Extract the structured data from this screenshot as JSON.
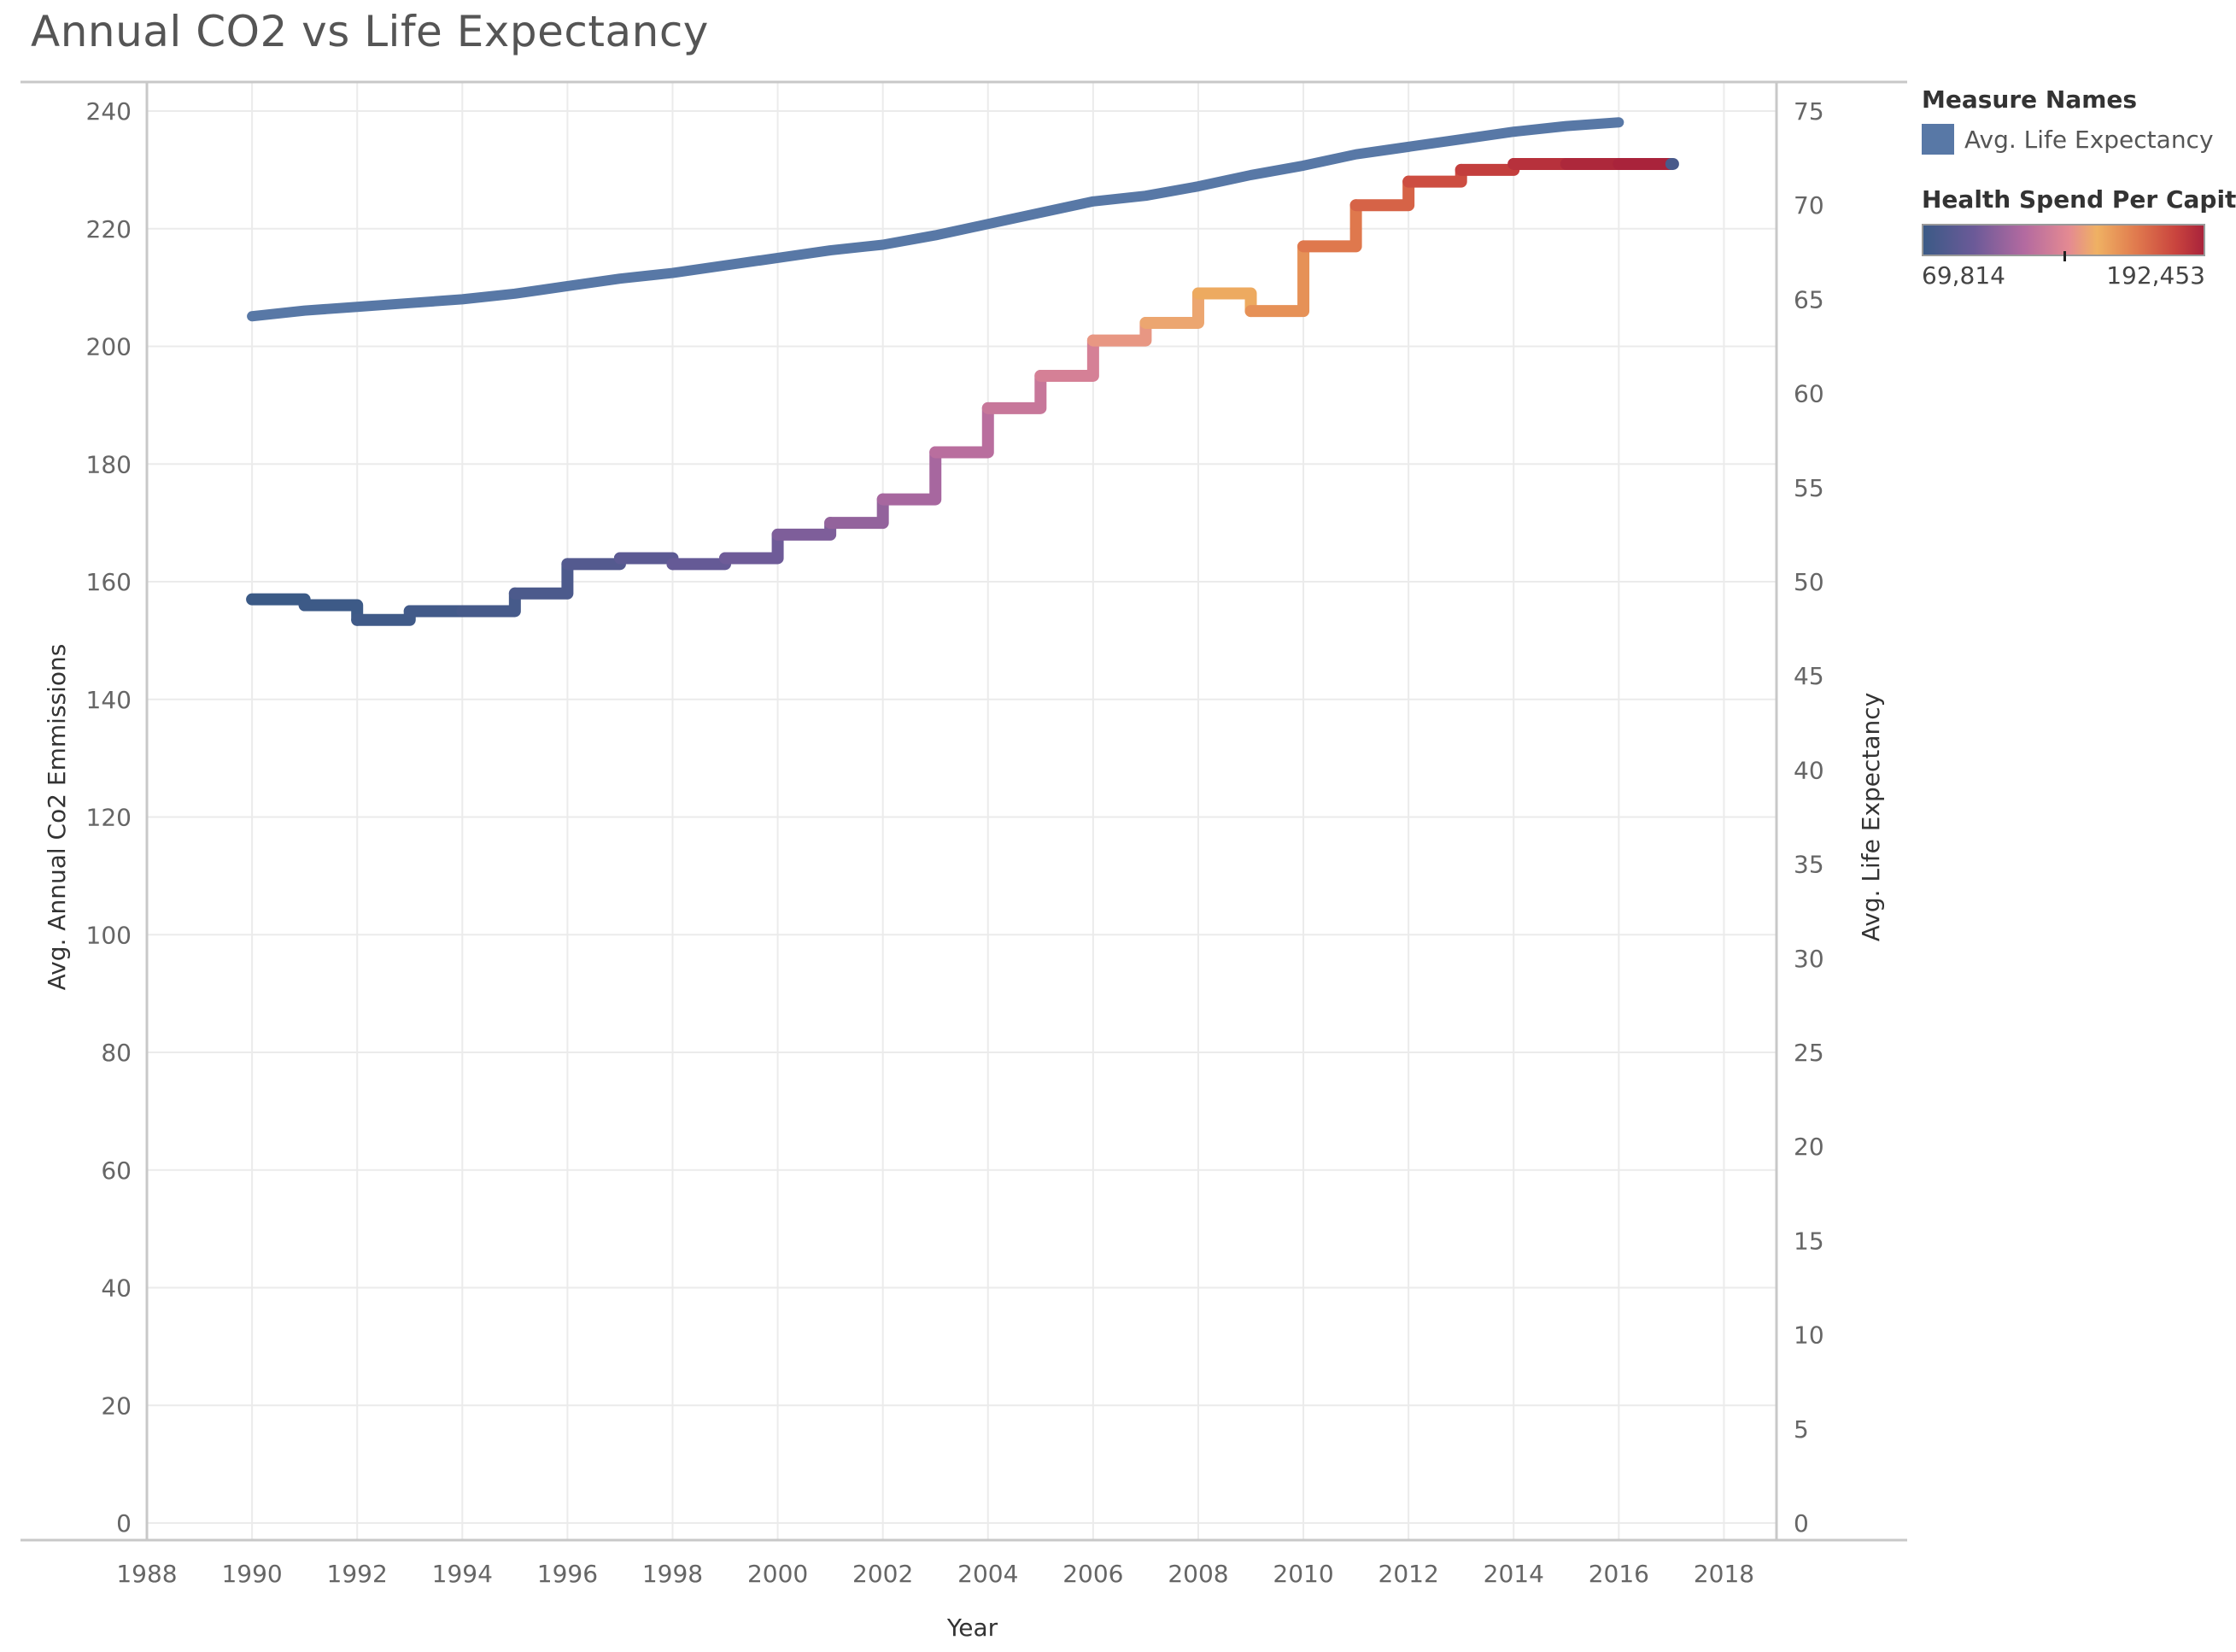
{
  "title": "Annual CO2 vs Life Expectancy",
  "chart_data": {
    "type": "line",
    "title": "Annual CO2 vs Life Expectancy",
    "xlabel": "Year",
    "ylabel_left": "Avg. Annual Co2 Emmissions",
    "ylabel_right": "Avg. Life Expectancy",
    "xlim": [
      1988,
      2019
    ],
    "x_ticks": [
      1988,
      1990,
      1992,
      1994,
      1996,
      1998,
      2000,
      2002,
      2004,
      2006,
      2008,
      2010,
      2012,
      2014,
      2016,
      2018
    ],
    "ylim_left": [
      0,
      240
    ],
    "y_ticks_left": [
      0,
      20,
      40,
      60,
      80,
      100,
      120,
      140,
      160,
      180,
      200,
      220,
      240
    ],
    "ylim_right": [
      0,
      75
    ],
    "y_ticks_right": [
      0,
      5,
      10,
      15,
      20,
      25,
      30,
      35,
      40,
      45,
      50,
      55,
      60,
      65,
      70,
      75
    ],
    "grid": true,
    "series": [
      {
        "name": "Avg. Annual Co2 Emmissions",
        "axis": "left",
        "line_style": "step",
        "x": [
          1990,
          1991,
          1992,
          1993,
          1994,
          1995,
          1996,
          1997,
          1998,
          1999,
          2000,
          2001,
          2002,
          2003,
          2004,
          2005,
          2006,
          2007,
          2008,
          2009,
          2010,
          2011,
          2012,
          2013,
          2014,
          2015,
          2016,
          2017
        ],
        "values": [
          157,
          156,
          153.5,
          155,
          155,
          158,
          163,
          164,
          163,
          164,
          168,
          170,
          174,
          182,
          189.5,
          195,
          201,
          204,
          209,
          206,
          217,
          224,
          228,
          230,
          231,
          231,
          231,
          231
        ],
        "health_spend_per_capita": [
          69814,
          70500,
          71500,
          72500,
          74000,
          76000,
          79000,
          82000,
          85000,
          88000,
          92000,
          97000,
          102000,
          107000,
          112000,
          117000,
          128000,
          135000,
          142000,
          150000,
          158000,
          165000,
          172000,
          178000,
          185000,
          190000,
          192453,
          75000
        ]
      },
      {
        "name": "Avg. Life Expectancy",
        "axis": "right",
        "line_style": "line",
        "x": [
          1990,
          1991,
          1992,
          1993,
          1994,
          1995,
          1996,
          1997,
          1998,
          1999,
          2000,
          2001,
          2002,
          2003,
          2004,
          2005,
          2006,
          2007,
          2008,
          2009,
          2010,
          2011,
          2012,
          2013,
          2014,
          2015,
          2016
        ],
        "values": [
          64.1,
          64.4,
          64.6,
          64.8,
          65.0,
          65.3,
          65.7,
          66.1,
          66.4,
          66.8,
          67.2,
          67.6,
          67.9,
          68.4,
          69.0,
          69.6,
          70.2,
          70.5,
          71.0,
          71.6,
          72.1,
          72.7,
          73.1,
          73.5,
          73.9,
          74.2,
          74.4
        ],
        "color": "#5878a6"
      }
    ],
    "legend": {
      "position": "right",
      "measure_names_title": "Measure Names",
      "measure_names_items": [
        "Avg. Life Expectancy"
      ],
      "color_title": "Health Spend Per Capita",
      "color_min": "69,814",
      "color_max": "192,453",
      "color_range": [
        69814,
        192453
      ],
      "color_stops": [
        "#3b5a86",
        "#6b5a98",
        "#b36aa0",
        "#e48a92",
        "#efb163",
        "#e07a4e",
        "#c9443e",
        "#a9233b"
      ]
    }
  }
}
